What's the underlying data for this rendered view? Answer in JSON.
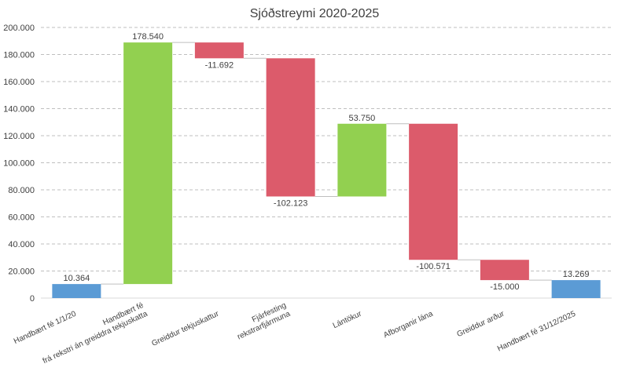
{
  "chart_data": {
    "type": "waterfall",
    "title": "Sjóðstreymi 2020-2025",
    "categories": [
      [
        "Handbært fé 1/1/20"
      ],
      [
        "Handbært fé",
        "frá rekstri án greiddra tekjuskatta"
      ],
      [
        "Greiddur tekjuskattur"
      ],
      [
        "Fjárfesting",
        "rekstrarfjármuna"
      ],
      [
        "Lántökur"
      ],
      [
        "Afborganir lána"
      ],
      [
        "Greiddur arður"
      ],
      [
        "Handbært fé 31/12/2025"
      ]
    ],
    "values": [
      10364,
      178540,
      -11692,
      -102123,
      53750,
      -100571,
      -15000,
      13269
    ],
    "data_labels": [
      "10.364",
      "178.540",
      "-11.692",
      "-102.123",
      "53.750",
      "-100.571",
      "-15.000",
      "13.269"
    ],
    "totals": [
      true,
      false,
      false,
      false,
      false,
      false,
      false,
      true
    ],
    "ylim": [
      0,
      200000
    ],
    "yticks": [
      0,
      20000,
      40000,
      60000,
      80000,
      100000,
      120000,
      140000,
      160000,
      180000,
      200000
    ],
    "ytick_labels": [
      "0",
      "20.000",
      "40.000",
      "60.000",
      "80.000",
      "100.000",
      "120.000",
      "140.000",
      "160.000",
      "180.000",
      "200.000"
    ],
    "grid": true,
    "colors": {
      "total": "#5b9bd5",
      "increase": "#92d050",
      "decrease": "#dc5b6b",
      "grid": "#bfbfbf",
      "connector": "#bfbfbf"
    }
  }
}
